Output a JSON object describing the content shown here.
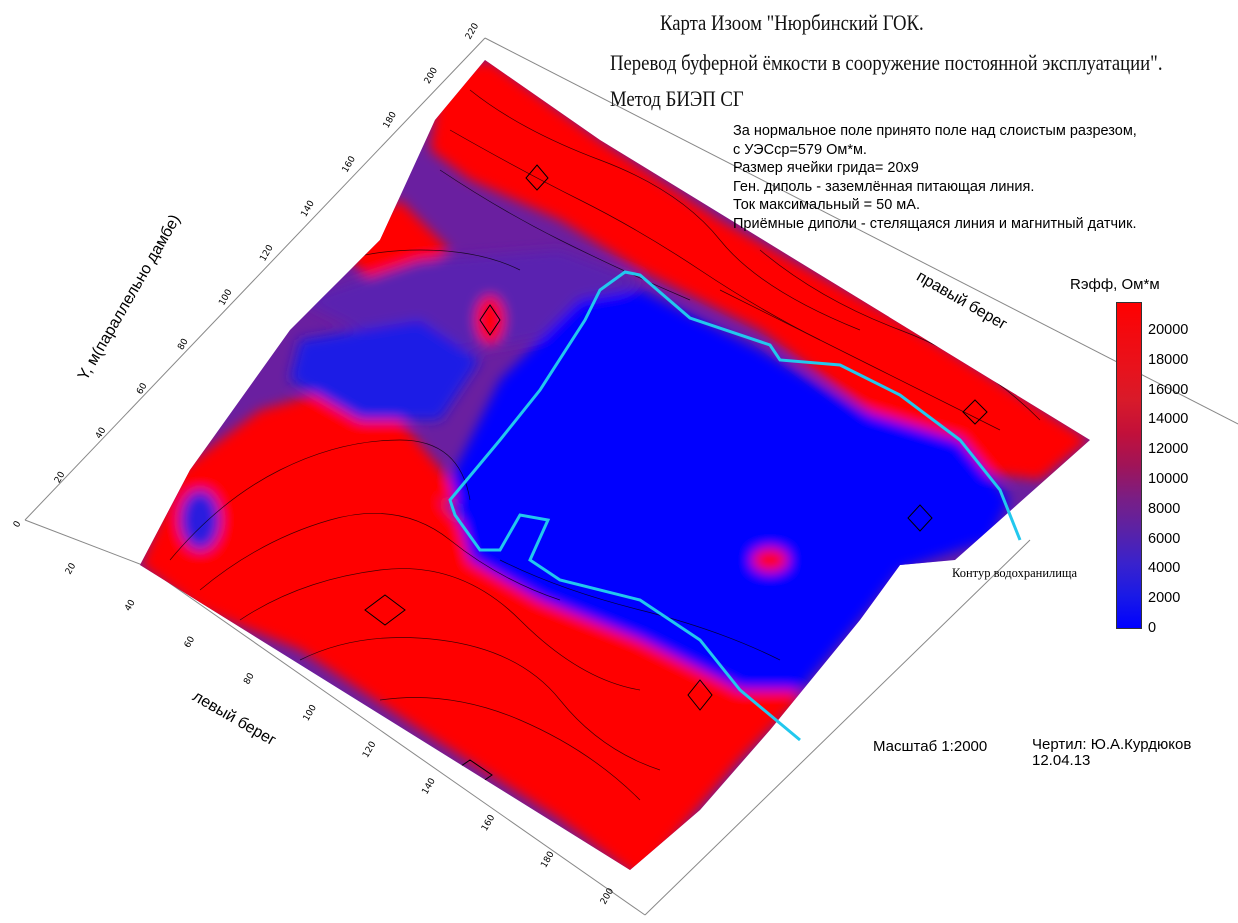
{
  "title": {
    "line1": "Карта Изоом \"Нюрбинский ГОК.",
    "line2": "Перевод буферной ёмкости в сооружение постоянной эксплуатации\".",
    "line3": "Метод БИЭП СГ"
  },
  "notes": [
    "За нормальное поле принято поле над слоистым разрезом,",
    "с УЭСср=579 Ом*м.",
    "Размер ячейки грида= 20х9",
    "Ген. диполь - заземлённая питающая линия.",
    "Ток максимальный = 50 мА.",
    "Приёмные диполи - стелящаяся линия и магнитный датчик."
  ],
  "legend": {
    "title": "Rэфф, Ом*м",
    "labels": [
      "20000",
      "18000",
      "16000",
      "14000",
      "12000",
      "10000",
      "8000",
      "6000",
      "4000",
      "2000",
      "0"
    ],
    "color_stops": [
      "#ff0000",
      "#f20a10",
      "#e8121c",
      "#d81a2a",
      "#c2103a",
      "#a01458",
      "#7a1e84",
      "#5a22a6",
      "#3a22cc",
      "#1a1ae6",
      "#0000ff"
    ]
  },
  "labels": {
    "right_bank": "правый берег",
    "left_bank": "левый берег",
    "y_axis": "Y, м(параллельно дамбе)",
    "reservoir": "Контур водохранилища"
  },
  "footer": {
    "scale": "Масштаб 1:2000",
    "author": "Чертил: Ю.А.Курдюков",
    "date": "12.04.13"
  },
  "axes": {
    "y_ticks": [
      "0",
      "20",
      "40",
      "60",
      "80",
      "100",
      "120",
      "140",
      "160",
      "180",
      "200",
      "220"
    ],
    "x_ticks": [
      "20",
      "40",
      "60",
      "80",
      "100",
      "120",
      "140",
      "160",
      "180",
      "200"
    ]
  },
  "colors": {
    "high": "#ff0000",
    "mid": "#7a1e84",
    "low": "#0000ff",
    "reservoir_contour": "#22c8ee"
  }
}
